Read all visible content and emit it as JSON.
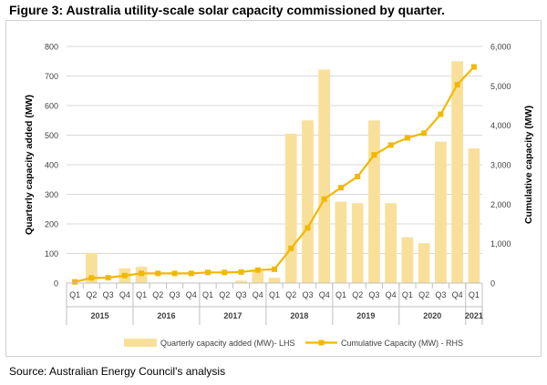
{
  "figure": {
    "title": "Figure 3: Australia utility-scale solar capacity commissioned by quarter.",
    "source": "Source: Australian Energy Council's analysis"
  },
  "chart_data": {
    "type": "bar+line",
    "title": "Figure 3: Australia utility-scale solar capacity commissioned by quarter.",
    "ylabel_left": "Quarterly capacity added (MW)",
    "ylabel_right": "Cumulative capacity (MW)",
    "ylim_left": [
      0,
      800
    ],
    "ylim_right": [
      0,
      6000
    ],
    "yticks_left": [
      "0",
      "100",
      "200",
      "300",
      "400",
      "500",
      "600",
      "700",
      "800"
    ],
    "yticks_right": [
      "0",
      "1,000",
      "2,000",
      "3,000",
      "4,000",
      "5,000",
      "6,000"
    ],
    "quarters": [
      "Q1",
      "Q2",
      "Q3",
      "Q4",
      "Q1",
      "Q2",
      "Q3",
      "Q4",
      "Q1",
      "Q2",
      "Q3",
      "Q4",
      "Q1",
      "Q2",
      "Q3",
      "Q4",
      "Q1",
      "Q2",
      "Q3",
      "Q4",
      "Q1",
      "Q2",
      "Q3",
      "Q4",
      "Q1"
    ],
    "years": [
      {
        "label": "2015",
        "count": 4
      },
      {
        "label": "2016",
        "count": 4
      },
      {
        "label": "2017",
        "count": 4
      },
      {
        "label": "2018",
        "count": 4
      },
      {
        "label": "2019",
        "count": 4
      },
      {
        "label": "2020",
        "count": 4
      },
      {
        "label": "2021",
        "count": 1
      }
    ],
    "series": [
      {
        "name": "Quarterly capacity added (MW)- LHS",
        "type": "bar",
        "axis": "left",
        "color": "#f9e09a",
        "values": [
          0,
          102,
          0,
          50,
          55,
          0,
          0,
          0,
          0,
          0,
          8,
          40,
          18,
          505,
          550,
          722,
          275,
          270,
          550,
          270,
          155,
          135,
          478,
          750,
          455
        ]
      },
      {
        "name": "Cumulative Capacity (MW) - RHS",
        "type": "line",
        "axis": "right",
        "color": "#f2b800",
        "values": [
          30,
          130,
          135,
          190,
          245,
          245,
          245,
          245,
          270,
          270,
          280,
          330,
          350,
          880,
          1400,
          2130,
          2420,
          2700,
          3250,
          3500,
          3680,
          3800,
          4280,
          5030,
          5480
        ]
      }
    ],
    "grid": true,
    "legend": "bottom"
  }
}
